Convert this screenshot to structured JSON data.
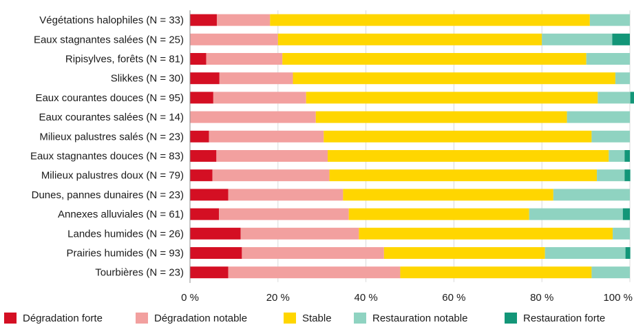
{
  "colors": {
    "degradation_forte": "#d40f23",
    "degradation_notable": "#f2a09f",
    "stable": "#ffd600",
    "restauration_notable": "#8fd3c1",
    "restauration_forte": "#139678",
    "grid": "#d9d9d9"
  },
  "chart_data": {
    "type": "bar",
    "orientation": "horizontal",
    "stacked": true,
    "percent": true,
    "xlim": [
      0,
      100
    ],
    "xticks": [
      0,
      20,
      40,
      60,
      80,
      100
    ],
    "xtick_labels": [
      "0 %",
      "20 %",
      "40 %",
      "60 %",
      "80 %",
      "100 %"
    ],
    "grid": "vertical",
    "legend_position": "bottom",
    "categories": [
      "Végétations halophiles (N = 33)",
      "Eaux stagnantes salées (N = 25)",
      "Ripisylves, forêts (N = 81)",
      "Slikkes (N = 30)",
      "Eaux courantes douces (N = 95)",
      "Eaux courantes salées (N = 14)",
      "Milieux palustres salés (N = 23)",
      "Eaux stagnantes douces (N = 83)",
      "Milieux palustres doux (N = 79)",
      "Dunes, pannes dunaires (N = 23)",
      "Annexes alluviales (N = 61)",
      "Landes humides (N = 26)",
      "Prairies humides (N = 93)",
      "Tourbières (N = 23)"
    ],
    "series": [
      {
        "name": "Dégradation forte",
        "color_key": "degradation_forte",
        "values": [
          6.1,
          0,
          3.7,
          6.7,
          5.3,
          0,
          4.3,
          6.0,
          5.1,
          8.7,
          6.6,
          11.5,
          11.8,
          8.7
        ]
      },
      {
        "name": "Dégradation notable",
        "color_key": "degradation_notable",
        "values": [
          12.1,
          20.0,
          17.3,
          16.7,
          21.1,
          28.6,
          26.1,
          25.3,
          26.6,
          26.1,
          29.5,
          26.9,
          32.3,
          39.1
        ]
      },
      {
        "name": "Stable",
        "color_key": "stable",
        "values": [
          72.7,
          60.0,
          69.1,
          73.3,
          66.3,
          57.1,
          60.9,
          63.9,
          60.8,
          47.8,
          41.0,
          57.7,
          36.6,
          43.5
        ]
      },
      {
        "name": "Restauration notable",
        "color_key": "restauration_notable",
        "values": [
          9.1,
          16.0,
          9.9,
          3.3,
          7.4,
          14.3,
          8.7,
          3.6,
          6.3,
          17.4,
          21.3,
          3.9,
          18.3,
          8.7
        ]
      },
      {
        "name": "Restauration forte",
        "color_key": "restauration_forte",
        "values": [
          0,
          4.0,
          0,
          0,
          1.1,
          0,
          0,
          1.2,
          1.3,
          0,
          1.6,
          0,
          1.1,
          0
        ]
      }
    ]
  }
}
